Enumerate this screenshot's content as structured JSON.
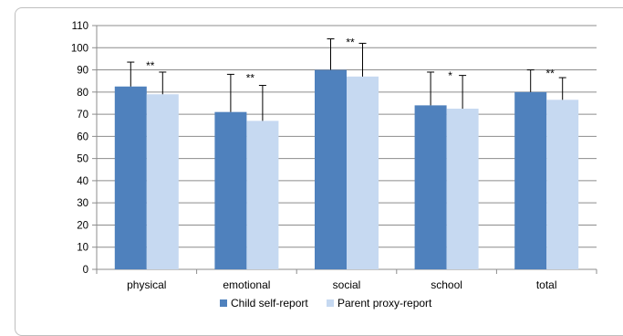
{
  "chart_data": {
    "type": "bar",
    "title": "",
    "xlabel": "",
    "ylabel": "",
    "ylim": [
      0,
      110
    ],
    "yticks": [
      0,
      10,
      20,
      30,
      40,
      50,
      60,
      70,
      80,
      90,
      100,
      110
    ],
    "grid": true,
    "legend_position": "bottom",
    "categories": [
      "physical",
      "emotional",
      "social",
      "school",
      "total"
    ],
    "series": [
      {
        "name": "Child self-report",
        "color": "#4f81bd",
        "values": [
          82.5,
          71.0,
          90.0,
          74.0,
          80.0
        ],
        "error_upper": [
          93.5,
          88.0,
          104.0,
          89.0,
          90.0
        ]
      },
      {
        "name": "Parent proxy-report",
        "color": "#c6d9f1",
        "values": [
          79.0,
          67.0,
          87.0,
          72.5,
          76.5
        ],
        "error_upper": [
          89.0,
          83.0,
          102.0,
          87.5,
          86.5
        ]
      }
    ],
    "significance": [
      "**",
      "**",
      "**",
      "*",
      "**"
    ]
  }
}
